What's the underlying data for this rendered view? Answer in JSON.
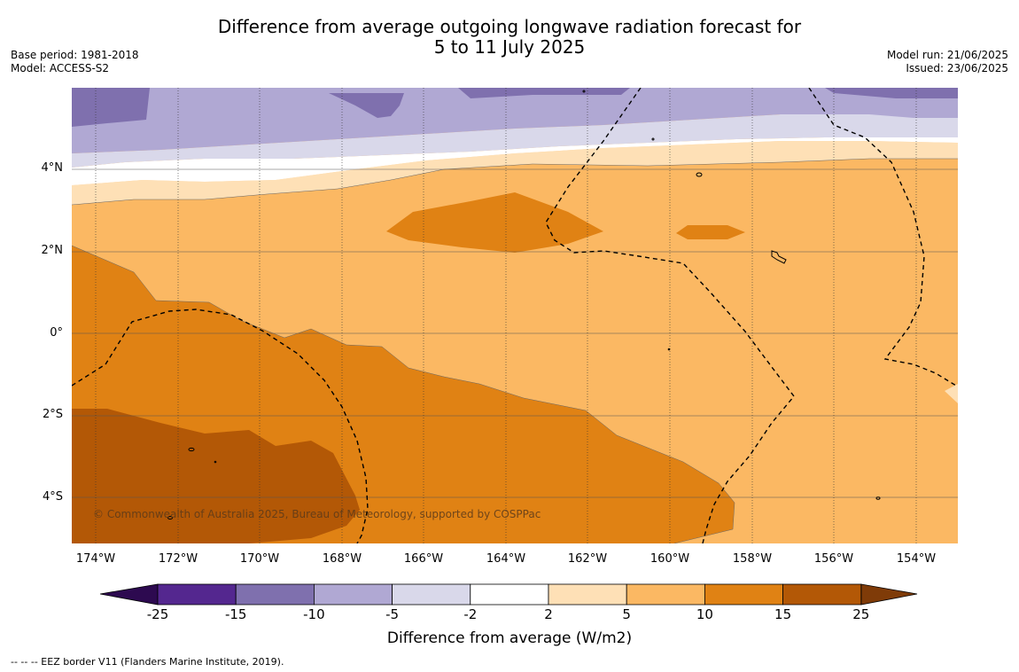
{
  "title": {
    "line1": "Difference from average outgoing longwave radiation forecast for",
    "line2": "5 to 11 July 2025"
  },
  "meta_left": {
    "base_period": "Base period: 1981-2018",
    "model": "Model: ACCESS-S2"
  },
  "meta_right": {
    "model_run": "Model run: 21/06/2025",
    "issued": "Issued: 23/06/2025"
  },
  "map": {
    "lat_labels": [
      "4°N",
      "2°N",
      "0°",
      "2°S",
      "4°S"
    ],
    "lon_labels": [
      "174°W",
      "172°W",
      "170°W",
      "168°W",
      "166°W",
      "164°W",
      "162°W",
      "160°W",
      "158°W",
      "156°W",
      "154°W"
    ],
    "copyright": "© Commonwealth of Australia 2025, Bureau of Meteorology, supported by COSPPac"
  },
  "colorbar": {
    "labels": [
      "-25",
      "-15",
      "-10",
      "-5",
      "-2",
      "2",
      "5",
      "10",
      "15",
      "25"
    ],
    "colors": [
      "#2d0a50",
      "#54278f",
      "#7f70ae",
      "#b0a8d3",
      "#d9d8ea",
      "#ffffff",
      "#fee0b6",
      "#fbb863",
      "#e08214",
      "#b35806",
      "#7f3b08"
    ],
    "title": "Difference from average (W/m2)"
  },
  "footnote": "--  --  -- EEZ border V11 (Flanders Marine Institute, 2019)."
}
